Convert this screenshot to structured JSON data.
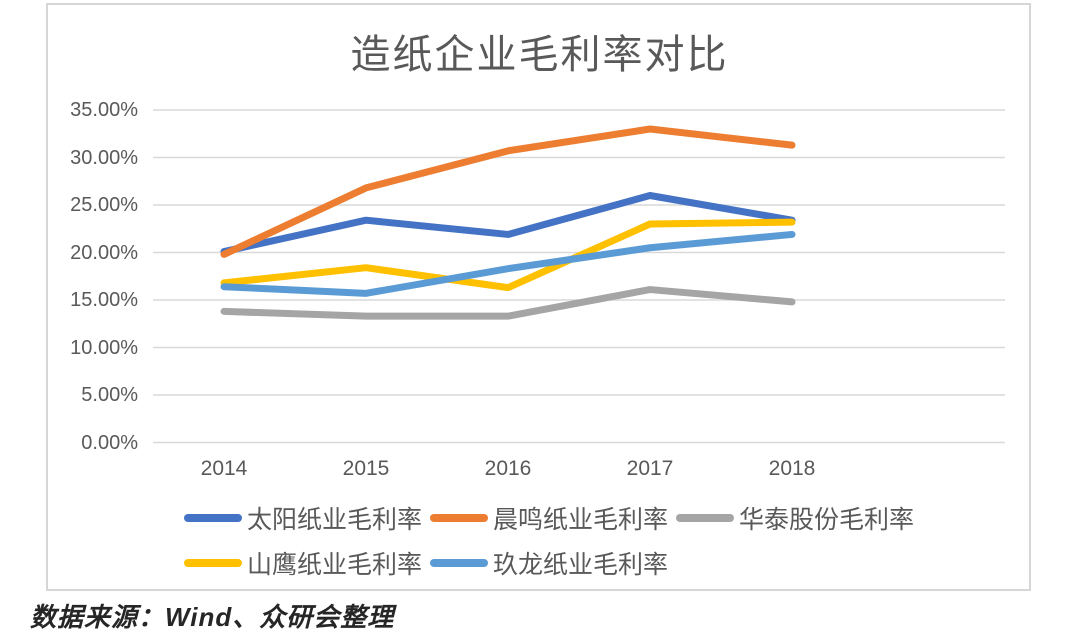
{
  "title": "造纸企业毛利率对比",
  "source_note": "数据来源：Wind、众研会整理",
  "colors": {
    "title_text": "#595959",
    "axis_text": "#595959",
    "grid_line": "#D9D9D9",
    "frame_border": "#D6D6D6",
    "source_text": "#262626"
  },
  "chart_data": {
    "type": "line",
    "title": "造纸企业毛利率对比",
    "categories": [
      "2014",
      "2015",
      "2016",
      "2017",
      "2018"
    ],
    "series": [
      {
        "name": "太阳纸业毛利率",
        "color": "#4472C4",
        "values": [
          20.1,
          23.4,
          21.9,
          26.0,
          23.4
        ]
      },
      {
        "name": "晨鸣纸业毛利率",
        "color": "#ED7D31",
        "values": [
          19.8,
          26.8,
          30.7,
          33.0,
          31.3
        ]
      },
      {
        "name": "华泰股份毛利率",
        "color": "#A5A5A5",
        "values": [
          13.8,
          13.3,
          13.3,
          16.1,
          14.8
        ]
      },
      {
        "name": "山鹰纸业毛利率",
        "color": "#FFC000",
        "values": [
          16.8,
          18.4,
          16.3,
          23.0,
          23.2
        ]
      },
      {
        "name": "玖龙纸业毛利率",
        "color": "#5B9BD5",
        "values": [
          16.4,
          15.7,
          18.3,
          20.5,
          21.9
        ]
      }
    ],
    "xlabel": "",
    "ylabel": "",
    "ylim": [
      0,
      35
    ],
    "ytick_step": 5,
    "ytick_labels": [
      "0.00%",
      "5.00%",
      "10.00%",
      "15.00%",
      "20.00%",
      "25.00%",
      "30.00%",
      "35.00%"
    ],
    "grid": true,
    "legend_position": "bottom",
    "legend_rows": [
      [
        "太阳纸业毛利率",
        "晨鸣纸业毛利率",
        "华泰股份毛利率"
      ],
      [
        "山鹰纸业毛利率",
        "玖龙纸业毛利率"
      ]
    ]
  }
}
